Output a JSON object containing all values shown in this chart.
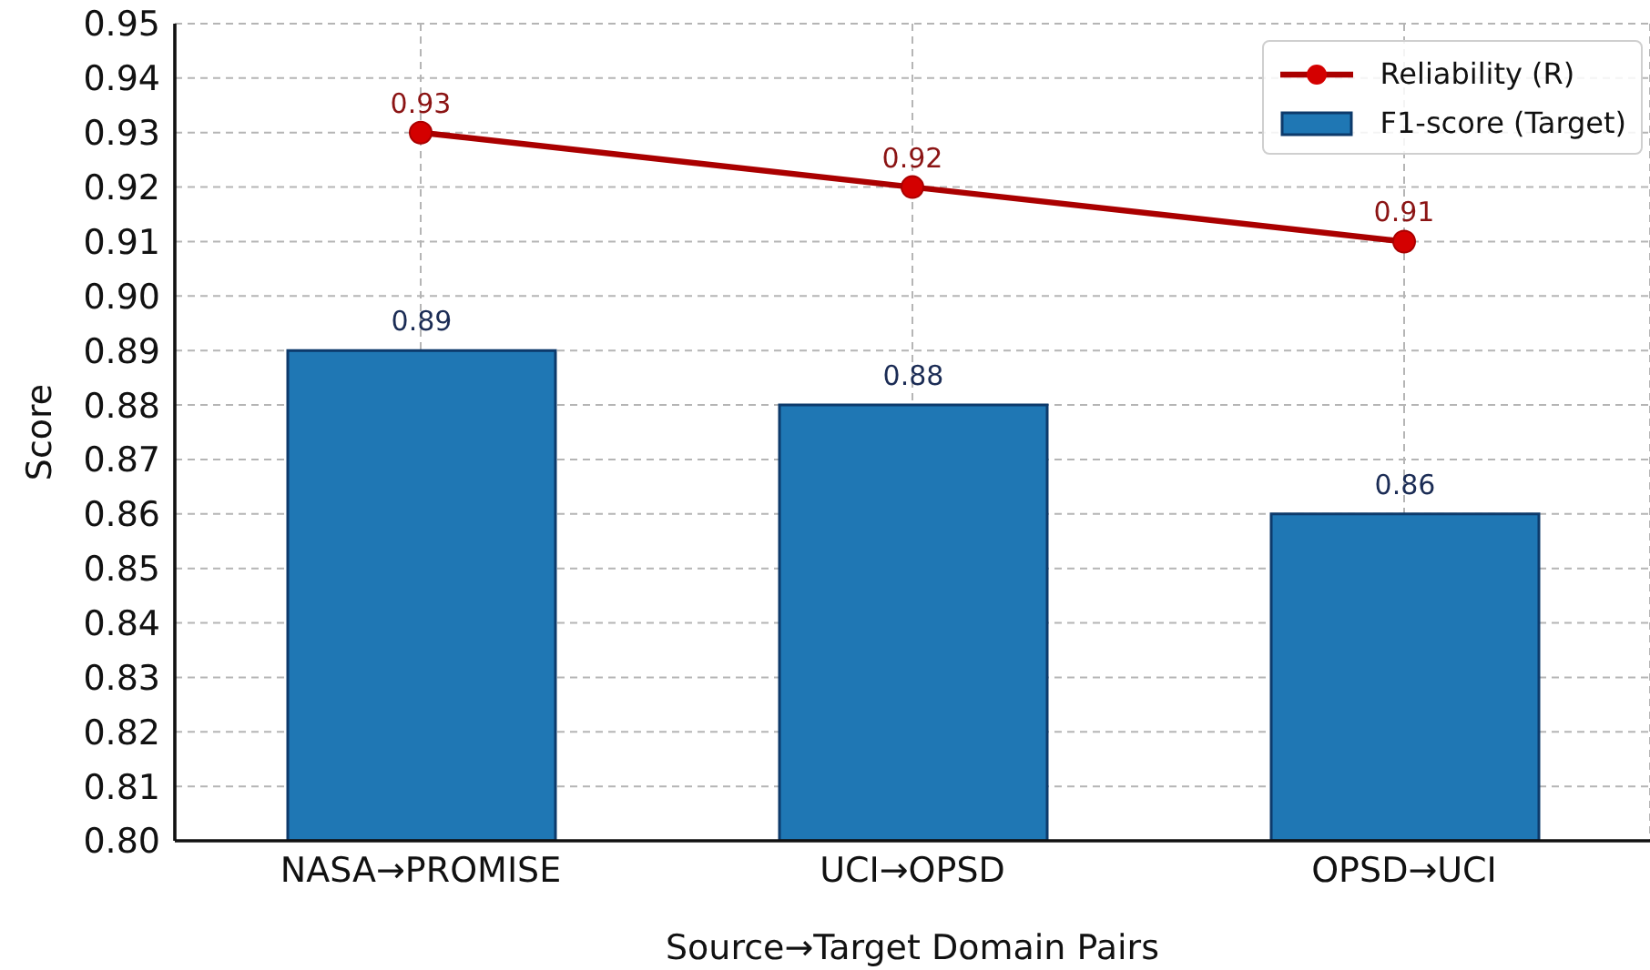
{
  "chart_data": {
    "type": "bar",
    "xlabel": "Source→Target Domain Pairs",
    "ylabel": "Score",
    "categories": [
      "NASA→PROMISE",
      "UCI→OPSD",
      "OPSD→UCI"
    ],
    "series": [
      {
        "name": "Reliability (R)",
        "type": "line",
        "color": "#aa0000",
        "values": [
          0.93,
          0.92,
          0.91
        ]
      },
      {
        "name": "F1-score (Target)",
        "color": "#1f77b4",
        "values": [
          0.89,
          0.88,
          0.86
        ]
      }
    ],
    "ylim": [
      0.8,
      0.95
    ],
    "yticks": [
      {
        "value": 0.8,
        "label": "0.80"
      },
      0.81,
      0.82,
      0.83,
      0.84,
      0.85,
      0.86,
      0.87,
      0.88,
      0.89,
      {
        "value": 0.9,
        "label": "0.90"
      },
      0.91,
      0.92,
      0.93,
      0.94,
      0.95
    ],
    "grid": true,
    "legend": "top right",
    "data_labels": true,
    "marker": "circle"
  }
}
